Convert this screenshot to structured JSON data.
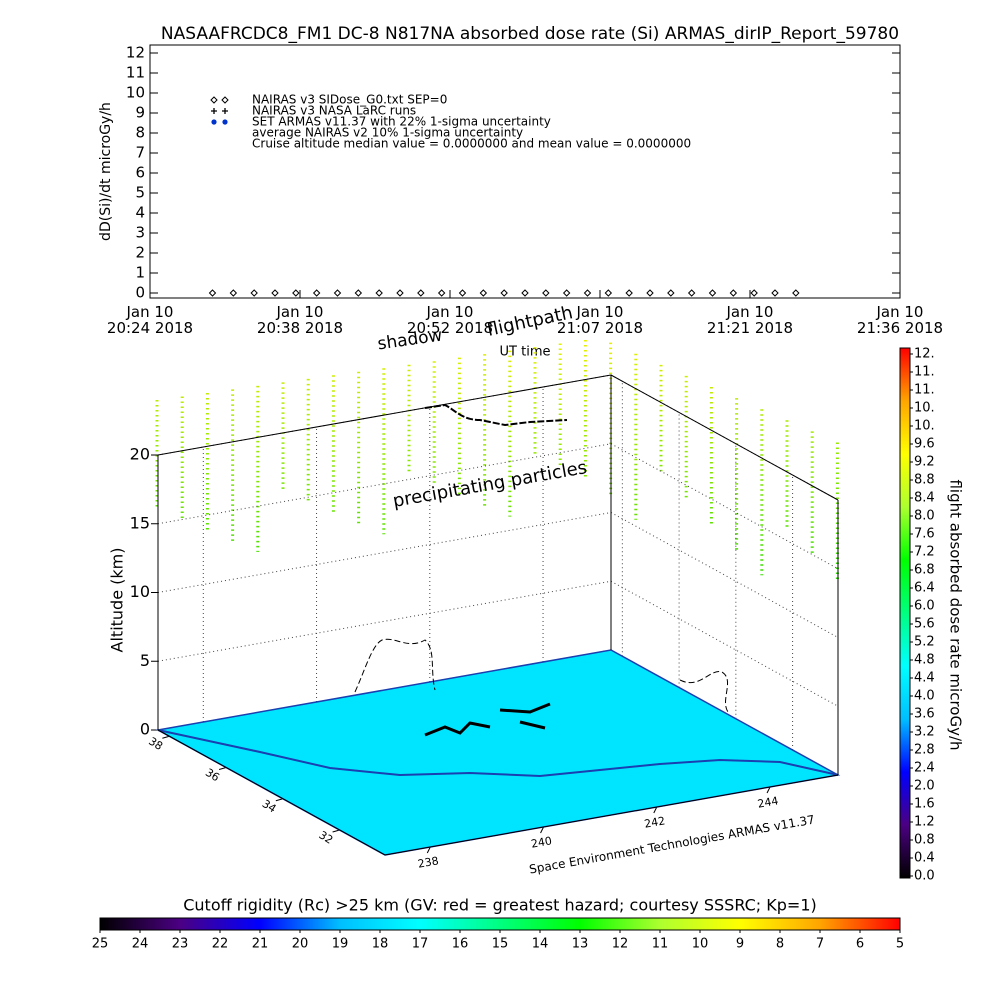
{
  "chart_data": [
    {
      "type": "line",
      "title": "NASAAFRCDC8_FM1 DC-8   N817NA absorbed dose rate (Si) ARMAS_dirIP_Report_59780",
      "y_label": "dD(Si)/dt microGy/h",
      "x_label": "UT time",
      "xlim": [
        "2018-01-10T20:24:00",
        "2018-01-10T21:36:00"
      ],
      "xticks": [
        {
          "value": "2018-01-10T20:24:00",
          "label": "Jan 10\n20:24 2018"
        },
        {
          "value": "2018-01-10T20:38:24",
          "label": "Jan 10\n20:38 2018"
        },
        {
          "value": "2018-01-10T20:52:48",
          "label": "Jan 10\n20:52 2018"
        },
        {
          "value": "2018-01-10T21:07:12",
          "label": "Jan 10\n21:07 2018"
        },
        {
          "value": "2018-01-10T21:21:36",
          "label": "Jan 10\n21:21 2018"
        },
        {
          "value": "2018-01-10T21:36:00",
          "label": "Jan 10\n21:36 2018"
        }
      ],
      "ylim": [
        -0.25,
        12.4
      ],
      "yticks": [
        0,
        1,
        2,
        3,
        4,
        5,
        6,
        7,
        8,
        9,
        10,
        11,
        12
      ],
      "series": [
        {
          "name": "NAIRAS v3 SIDose_G0.txt SEP=0",
          "marker": "diamond",
          "color": "#000000",
          "x": [
            "2018-01-10T20:30",
            "2018-01-10T20:32",
            "2018-01-10T20:34",
            "2018-01-10T20:36",
            "2018-01-10T20:38",
            "2018-01-10T20:40",
            "2018-01-10T20:42",
            "2018-01-10T20:44",
            "2018-01-10T20:46",
            "2018-01-10T20:48",
            "2018-01-10T20:50",
            "2018-01-10T20:52",
            "2018-01-10T20:54",
            "2018-01-10T20:56",
            "2018-01-10T20:58",
            "2018-01-10T21:00",
            "2018-01-10T21:02",
            "2018-01-10T21:04",
            "2018-01-10T21:06",
            "2018-01-10T21:08",
            "2018-01-10T21:10",
            "2018-01-10T21:12",
            "2018-01-10T21:14",
            "2018-01-10T21:16",
            "2018-01-10T21:18",
            "2018-01-10T21:20",
            "2018-01-10T21:22",
            "2018-01-10T21:24",
            "2018-01-10T21:26"
          ],
          "values": [
            0,
            0,
            0,
            0,
            0,
            0,
            0,
            0,
            0,
            0,
            0,
            0,
            0,
            0,
            0,
            0,
            0,
            0,
            0,
            0,
            0,
            0,
            0,
            0,
            0,
            0,
            0,
            0,
            0
          ]
        },
        {
          "name": "NAIRAS v3 NASA LaRC runs",
          "marker": "plus",
          "color": "#000000"
        },
        {
          "name": "SET ARMAS v11.37 with 22% 1-sigma uncertainty",
          "marker": "dot",
          "color": "#0033cc"
        }
      ],
      "legend_text": [
        "average NAIRAS v2 10% 1-sigma uncertainty",
        "Cruise altitude median value = 0.0000000 and mean value = 0.0000000"
      ]
    },
    {
      "type": "surface3d",
      "z_label": "Altitude (km)",
      "zlim": [
        0,
        20
      ],
      "zticks": [
        0,
        5,
        10,
        15,
        20
      ],
      "lon_lim": [
        237.2,
        245.2
      ],
      "lon_ticks": [
        238,
        240,
        242,
        244
      ],
      "lat_lim": [
        30.4,
        38.4
      ],
      "lat_ticks": [
        32,
        34,
        36,
        38
      ],
      "annotations": [
        "shadow",
        "flightpath",
        "precipitating particles"
      ],
      "credit": "Space Environment Technologies ARMAS v11.37",
      "surface_color": "#00e5ff"
    },
    {
      "type": "colorbar",
      "orientation": "vertical",
      "label": "flight absorbed dose rate microGy/h",
      "clim": [
        0,
        11.8
      ],
      "ticks": [
        {
          "value": 0,
          "label": "0.0"
        },
        0.4,
        0.8,
        1.2,
        1.6,
        {
          "value": 2,
          "label": "2.0"
        },
        2.4,
        2.8,
        3.2,
        3.6,
        {
          "value": 4,
          "label": "4.0"
        },
        4.4,
        4.8,
        5.2,
        5.6,
        {
          "value": 6,
          "label": "6.0"
        },
        6.4,
        6.8,
        7.2,
        7.6,
        {
          "value": 8,
          "label": "8.0"
        },
        8.4,
        8.8,
        9.2,
        9.6,
        {
          "value": 10,
          "label": "10."
        },
        {
          "value": 10.4,
          "label": "10."
        },
        {
          "value": 10.8,
          "label": "11."
        },
        {
          "value": 11.2,
          "label": "11."
        },
        {
          "value": 11.6,
          "label": "12."
        }
      ],
      "colors": [
        "#000000",
        "#4b0082",
        "#0000ff",
        "#00bfff",
        "#00ffff",
        "#00ff7f",
        "#00ff00",
        "#adff2f",
        "#ffff00",
        "#ffa500",
        "#ff0000"
      ]
    },
    {
      "type": "colorbar",
      "orientation": "horizontal",
      "label": "Cutoff rigidity (Rc) >25 km (GV: red = greatest hazard; courtesy SSSRC; Kp=1)",
      "clim": [
        25,
        5
      ],
      "ticks": [
        25,
        24,
        23,
        22,
        21,
        20,
        19,
        18,
        17,
        16,
        15,
        14,
        13,
        12,
        11,
        10,
        9,
        8,
        7,
        6,
        5
      ],
      "colors": [
        "#000000",
        "#4b0082",
        "#0000ff",
        "#00bfff",
        "#00ffff",
        "#00ff7f",
        "#00ff00",
        "#adff2f",
        "#ffff00",
        "#ffa500",
        "#ff0000"
      ]
    }
  ]
}
